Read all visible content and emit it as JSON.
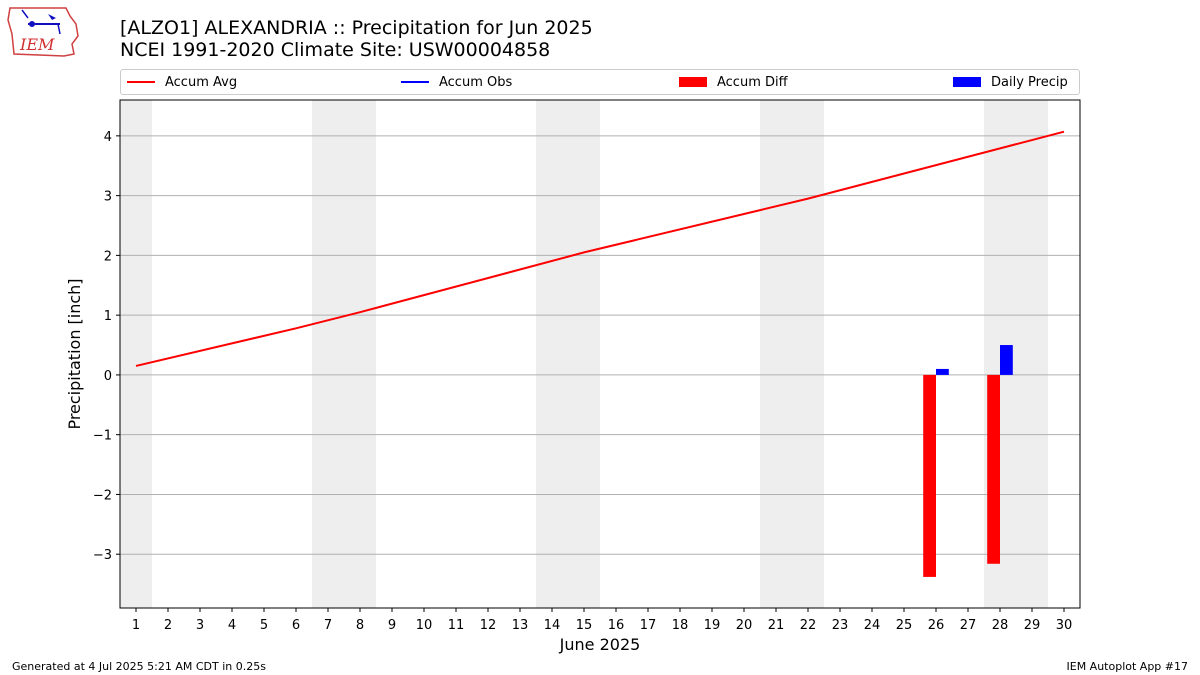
{
  "header": {
    "title": "[ALZO1] ALEXANDRIA :: Precipitation for Jun 2025",
    "subtitle": "NCEI 1991-2020 Climate Site: USW00004858",
    "logo_text": "IEM"
  },
  "legend": {
    "items": [
      {
        "label": "Accum Avg",
        "kind": "line",
        "color": "#ff0000"
      },
      {
        "label": "Accum Obs",
        "kind": "line",
        "color": "#0000ff"
      },
      {
        "label": "Accum Diff",
        "kind": "box",
        "color": "#ff0000"
      },
      {
        "label": "Daily Precip",
        "kind": "box",
        "color": "#0000ff"
      }
    ]
  },
  "footer": {
    "left": "Generated at 4 Jul 2025 5:21 AM CDT in 0.25s",
    "right": "IEM Autoplot App #17"
  },
  "chart_data": {
    "type": "bar",
    "xlabel": "June 2025",
    "ylabel": "Precipitation [inch]",
    "xlim": [
      0.5,
      30.5
    ],
    "ylim": [
      -3.9,
      4.6
    ],
    "yticks": [
      4,
      3,
      2,
      1,
      0,
      -1,
      -2,
      -3
    ],
    "ytick_labels": [
      "4",
      "3",
      "2",
      "1",
      "0",
      "−1",
      "−2",
      "−3"
    ],
    "x": [
      1,
      2,
      3,
      4,
      5,
      6,
      7,
      8,
      9,
      10,
      11,
      12,
      13,
      14,
      15,
      16,
      17,
      18,
      19,
      20,
      21,
      22,
      23,
      24,
      25,
      26,
      27,
      28,
      29,
      30
    ],
    "xtick_labels": [
      "1",
      "2",
      "3",
      "4",
      "5",
      "6",
      "7",
      "8",
      "9",
      "10",
      "11",
      "12",
      "13",
      "14",
      "15",
      "16",
      "17",
      "18",
      "19",
      "20",
      "21",
      "22",
      "23",
      "24",
      "25",
      "26",
      "27",
      "28",
      "29",
      "30"
    ],
    "weekend_shading": [
      [
        0.5,
        1.5
      ],
      [
        6.5,
        8.5
      ],
      [
        13.5,
        15.5
      ],
      [
        20.5,
        22.5
      ],
      [
        27.5,
        29.5
      ]
    ],
    "grid": "horizontal",
    "legend_position": "top",
    "series": [
      {
        "name": "Accum Avg",
        "kind": "line",
        "color": "#ff0000",
        "x": [
          1,
          6,
          8,
          15,
          22,
          30
        ],
        "values": [
          0.15,
          0.78,
          1.05,
          2.05,
          2.95,
          4.07
        ]
      },
      {
        "name": "Accum Diff",
        "kind": "bar",
        "color": "#ff0000",
        "x": [
          26,
          28
        ],
        "values": [
          -3.38,
          -3.16
        ]
      },
      {
        "name": "Daily Precip",
        "kind": "bar",
        "color": "#0000ff",
        "x": [
          26,
          28
        ],
        "values": [
          0.1,
          0.5
        ]
      }
    ]
  }
}
